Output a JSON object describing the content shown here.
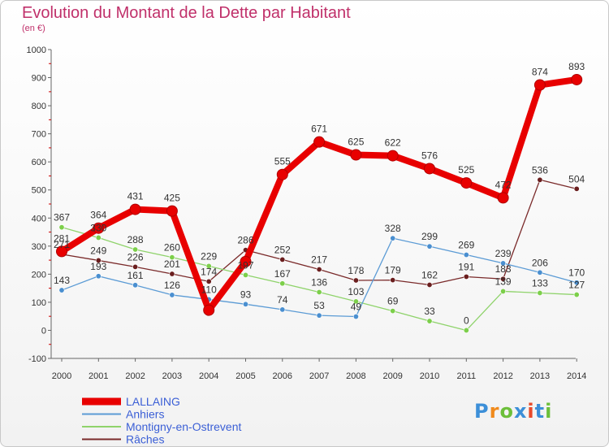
{
  "chart_data": {
    "type": "line",
    "title": "Evolution du Montant de la Dette par Habitant",
    "subtitle": "(en €)",
    "x": [
      "2000",
      "2001",
      "2002",
      "2003",
      "2004",
      "2005",
      "2006",
      "2007",
      "2008",
      "2009",
      "2010",
      "2011",
      "2012",
      "2013",
      "2014"
    ],
    "ylim": [
      -100,
      1000
    ],
    "yticks": [
      -100,
      0,
      100,
      200,
      300,
      400,
      500,
      600,
      700,
      800,
      900,
      1000
    ],
    "grid": false,
    "legend_position": "bottom-left",
    "series": [
      {
        "name": "LALLAING",
        "color": "#e80000",
        "marker_color": "#e80000",
        "values": [
          281,
          364,
          431,
          425,
          72,
          245,
          555,
          671,
          625,
          622,
          576,
          525,
          472,
          874,
          893
        ],
        "labels": [
          "281",
          "364",
          "431",
          "425",
          "",
          "",
          "555",
          "671",
          "625",
          "622",
          "576",
          "525",
          "472",
          "874",
          "893"
        ]
      },
      {
        "name": "Anhiers",
        "color": "#5b9bd5",
        "marker_color": "#4a8fd0",
        "values": [
          143,
          193,
          161,
          126,
          110,
          93,
          74,
          53,
          49,
          328,
          299,
          269,
          239,
          206,
          170
        ],
        "labels": [
          "143",
          "193",
          "161",
          "126",
          "110",
          "93",
          "74",
          "53",
          "49",
          "328",
          "299",
          "269",
          "239",
          "206",
          "170"
        ]
      },
      {
        "name": "Montigny-en-Ostrevent",
        "color": "#8fd36b",
        "marker_color": "#7ccf4a",
        "values": [
          367,
          330,
          288,
          260,
          229,
          197,
          167,
          136,
          103,
          69,
          33,
          0,
          139,
          133,
          127
        ],
        "labels": [
          "367",
          "330",
          "288",
          "260",
          "229",
          "197",
          "167",
          "136",
          "103",
          "69",
          "33",
          "0",
          "139",
          "133",
          "127"
        ]
      },
      {
        "name": "Râches",
        "color": "#7a2a2a",
        "marker_color": "#6a1e1e",
        "values": [
          271,
          249,
          226,
          201,
          174,
          286,
          252,
          217,
          178,
          179,
          162,
          191,
          183,
          536,
          504
        ],
        "labels": [
          "271",
          "249",
          "226",
          "201",
          "174",
          "286",
          "252",
          "217",
          "178",
          "179",
          "162",
          "191",
          "183",
          "536",
          "504"
        ]
      }
    ]
  },
  "logo": {
    "text": "Proxiti",
    "letter_colors": [
      "#3c8fd8",
      "#f08a1c",
      "#6cbf3a",
      "#3c8fd8",
      "#e84a2a",
      "#3c8fd8",
      "#6cbf3a"
    ]
  }
}
